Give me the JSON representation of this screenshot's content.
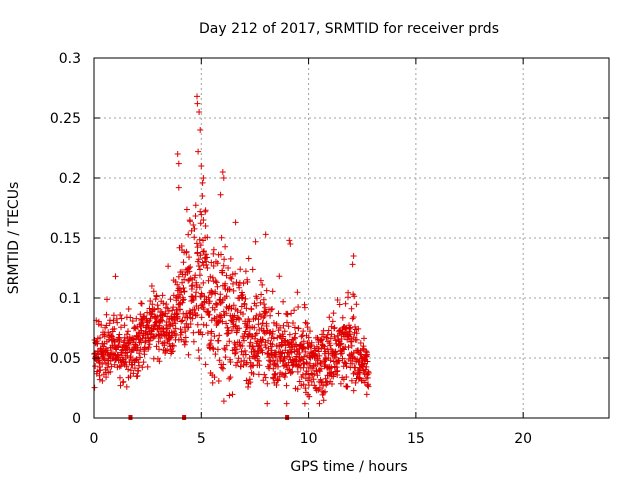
{
  "chart_data": {
    "type": "scatter",
    "title": "Day 212 of 2017, SRMTID for receiver prds",
    "xlabel": "GPS time / hours",
    "ylabel": "SRMTID / TECUs",
    "xlim": [
      0,
      24
    ],
    "ylim": [
      0,
      0.3
    ],
    "xticks": [
      0,
      5,
      10,
      15,
      20
    ],
    "xtick_labels": [
      "0",
      "5",
      "10",
      "15",
      "20"
    ],
    "yticks": [
      0,
      0.05,
      0.1,
      0.15,
      0.2,
      0.25,
      0.3
    ],
    "ytick_labels": [
      "0",
      "0.05",
      "0.1",
      "0.15",
      "0.2",
      "0.25",
      "0.3"
    ],
    "grid": true,
    "marker": "+",
    "color": "#e00000",
    "x_range_of_points": [
      0,
      12.8
    ],
    "envelope": [
      {
        "x": 0.0,
        "y": 0.05,
        "spread": 0.012
      },
      {
        "x": 0.5,
        "y": 0.055,
        "spread": 0.013
      },
      {
        "x": 1.0,
        "y": 0.058,
        "spread": 0.013
      },
      {
        "x": 1.5,
        "y": 0.055,
        "spread": 0.012
      },
      {
        "x": 2.0,
        "y": 0.06,
        "spread": 0.013
      },
      {
        "x": 2.5,
        "y": 0.075,
        "spread": 0.013
      },
      {
        "x": 3.0,
        "y": 0.078,
        "spread": 0.013
      },
      {
        "x": 3.5,
        "y": 0.07,
        "spread": 0.013
      },
      {
        "x": 4.0,
        "y": 0.095,
        "spread": 0.02
      },
      {
        "x": 4.5,
        "y": 0.11,
        "spread": 0.025
      },
      {
        "x": 5.0,
        "y": 0.12,
        "spread": 0.03
      },
      {
        "x": 5.5,
        "y": 0.08,
        "spread": 0.03
      },
      {
        "x": 6.0,
        "y": 0.09,
        "spread": 0.03
      },
      {
        "x": 6.5,
        "y": 0.085,
        "spread": 0.025
      },
      {
        "x": 7.0,
        "y": 0.07,
        "spread": 0.02
      },
      {
        "x": 7.5,
        "y": 0.065,
        "spread": 0.02
      },
      {
        "x": 8.0,
        "y": 0.07,
        "spread": 0.02
      },
      {
        "x": 8.5,
        "y": 0.06,
        "spread": 0.018
      },
      {
        "x": 9.0,
        "y": 0.055,
        "spread": 0.016
      },
      {
        "x": 9.5,
        "y": 0.05,
        "spread": 0.015
      },
      {
        "x": 10.0,
        "y": 0.045,
        "spread": 0.014
      },
      {
        "x": 10.5,
        "y": 0.045,
        "spread": 0.014
      },
      {
        "x": 11.0,
        "y": 0.05,
        "spread": 0.015
      },
      {
        "x": 11.5,
        "y": 0.055,
        "spread": 0.016
      },
      {
        "x": 12.0,
        "y": 0.06,
        "spread": 0.018
      },
      {
        "x": 12.5,
        "y": 0.045,
        "spread": 0.012
      },
      {
        "x": 12.8,
        "y": 0.04,
        "spread": 0.01
      }
    ],
    "outliers": [
      {
        "x": 4.8,
        "y": 0.268
      },
      {
        "x": 4.82,
        "y": 0.262
      },
      {
        "x": 4.9,
        "y": 0.255
      },
      {
        "x": 4.95,
        "y": 0.24
      },
      {
        "x": 4.85,
        "y": 0.222
      },
      {
        "x": 3.9,
        "y": 0.22
      },
      {
        "x": 3.95,
        "y": 0.212
      },
      {
        "x": 5.0,
        "y": 0.21
      },
      {
        "x": 5.1,
        "y": 0.2
      },
      {
        "x": 6.0,
        "y": 0.205
      },
      {
        "x": 6.05,
        "y": 0.2
      },
      {
        "x": 3.95,
        "y": 0.192
      },
      {
        "x": 5.05,
        "y": 0.185
      },
      {
        "x": 5.9,
        "y": 0.186
      },
      {
        "x": 4.95,
        "y": 0.172
      },
      {
        "x": 5.1,
        "y": 0.165
      },
      {
        "x": 5.2,
        "y": 0.16
      },
      {
        "x": 6.6,
        "y": 0.163
      },
      {
        "x": 8.0,
        "y": 0.153
      },
      {
        "x": 9.1,
        "y": 0.148
      },
      {
        "x": 9.15,
        "y": 0.145
      },
      {
        "x": 4.1,
        "y": 0.14
      },
      {
        "x": 4.2,
        "y": 0.138
      },
      {
        "x": 12.1,
        "y": 0.135
      },
      {
        "x": 12.05,
        "y": 0.128
      },
      {
        "x": 1.0,
        "y": 0.118
      },
      {
        "x": 2.7,
        "y": 0.11
      }
    ],
    "x_axis_markers": [
      1.7,
      4.2,
      9.0
    ]
  }
}
